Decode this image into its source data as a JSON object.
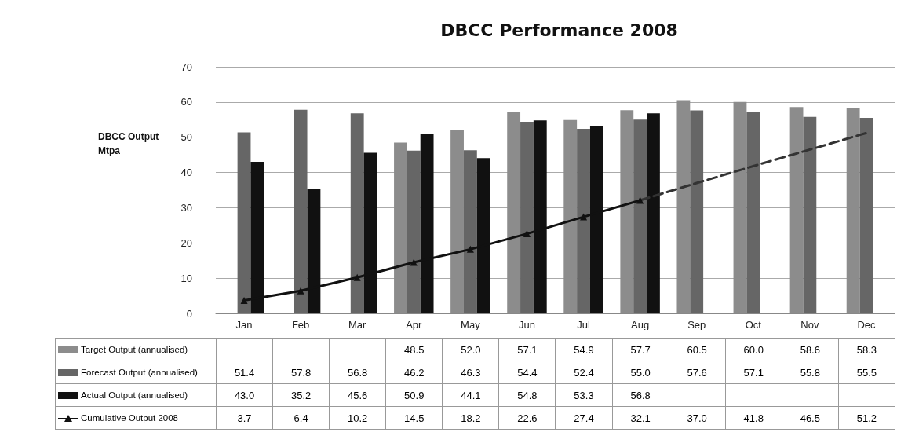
{
  "chart_data": {
    "type": "bar",
    "title": "DBCC Performance 2008",
    "ylabel": "DBCC Output\nMtpa",
    "categories": [
      "Jan",
      "Feb",
      "Mar",
      "Apr",
      "May",
      "Jun",
      "Jul",
      "Aug",
      "Sep",
      "Oct",
      "Nov",
      "Dec"
    ],
    "series": [
      {
        "name": "Target Output (annualised)",
        "color": "#8c8c8c",
        "values": [
          null,
          null,
          null,
          48.5,
          52.0,
          57.1,
          54.9,
          57.7,
          60.5,
          60.0,
          58.6,
          58.3
        ],
        "value_labels": [
          null,
          null,
          null,
          "48.5",
          "52.0",
          "57.1",
          "54.9",
          "57.7",
          "60.5",
          "60.0",
          "58.6",
          "58.3"
        ]
      },
      {
        "name": "Forecast Output (annualised)",
        "color": "#666666",
        "values": [
          51.4,
          57.8,
          56.8,
          46.2,
          46.3,
          54.4,
          52.4,
          55.0,
          57.6,
          57.1,
          55.8,
          55.5
        ],
        "value_labels": [
          "51.4",
          "57.8",
          "56.8",
          "46.2",
          "46.3",
          "54.4",
          "52.4",
          "55.0",
          "57.6",
          "57.1",
          "55.8",
          "55.5"
        ]
      },
      {
        "name": "Actual Output (annualised)",
        "color": "#111111",
        "values": [
          43.0,
          35.2,
          45.6,
          50.9,
          44.1,
          54.8,
          53.3,
          56.8,
          null,
          null,
          null,
          null
        ],
        "value_labels": [
          "43.0",
          "35.2",
          "45.6",
          "50.9",
          "44.1",
          "54.8",
          "53.3",
          "56.8",
          null,
          null,
          null,
          null
        ]
      },
      {
        "name": "Cumulative Output 2008",
        "type": "line",
        "color": "#111111",
        "marker": "triangle",
        "line_style": "solid",
        "values": [
          3.7,
          6.4,
          10.2,
          14.5,
          18.2,
          22.6,
          27.4,
          32.1,
          null,
          null,
          null,
          null
        ],
        "value_labels": [
          "3.7",
          "6.4",
          "10.2",
          "14.5",
          "18.2",
          "22.6",
          "27.4",
          "32.1",
          "37.0",
          "41.8",
          "46.5",
          "51.2"
        ]
      },
      {
        "type": "line",
        "color": "#333333",
        "marker": "none",
        "line_style": "dashed",
        "values": [
          null,
          null,
          null,
          null,
          null,
          null,
          null,
          32.1,
          37.0,
          41.8,
          46.5,
          51.2
        ]
      }
    ],
    "ylim": [
      0,
      70
    ],
    "yticks": [
      0,
      10,
      20,
      30,
      40,
      50,
      60,
      70
    ],
    "grid": "y",
    "legend": "bottom"
  }
}
